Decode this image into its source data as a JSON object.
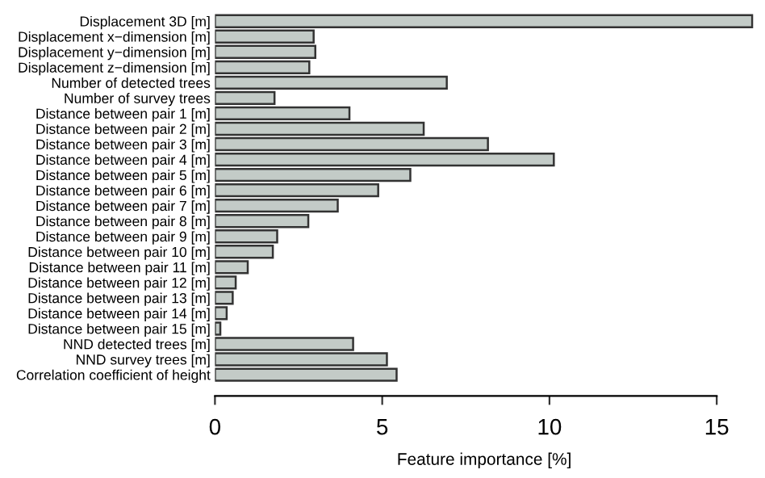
{
  "chart_data": {
    "type": "bar",
    "orientation": "horizontal",
    "xlabel": "Feature importance [%]",
    "categories": [
      "Displacement 3D [m]",
      "Displacement x−dimension [m]",
      "Displacement y−dimension [m]",
      "Displacement z−dimension [m]",
      "Number of detected trees",
      "Number of survey trees",
      "Distance between pair 1 [m]",
      "Distance between pair 2 [m]",
      "Distance between pair 3 [m]",
      "Distance between pair 4 [m]",
      "Distance between pair 5 [m]",
      "Distance between pair 6 [m]",
      "Distance between pair 7 [m]",
      "Distance between pair 8 [m]",
      "Distance between pair 9 [m]",
      "Distance between pair 10 [m]",
      "Distance between pair 11 [m]",
      "Distance between pair 12 [m]",
      "Distance between pair 13 [m]",
      "Distance between pair 14 [m]",
      "Distance between pair 15 [m]",
      "NND detected trees [m]",
      "NND survey trees [m]",
      "Correlation coefficient of height"
    ],
    "values": [
      16.06,
      2.95,
      3.0,
      2.82,
      6.93,
      1.78,
      4.02,
      6.24,
      8.16,
      10.13,
      5.84,
      4.88,
      3.67,
      2.79,
      1.86,
      1.73,
      0.98,
      0.62,
      0.53,
      0.35,
      0.16,
      4.13,
      5.14,
      5.43
    ],
    "color": "#c3cbc7",
    "xlim": [
      0,
      16.1
    ],
    "xticks": [
      0,
      5,
      10,
      15
    ],
    "grid": false,
    "legend": false
  }
}
